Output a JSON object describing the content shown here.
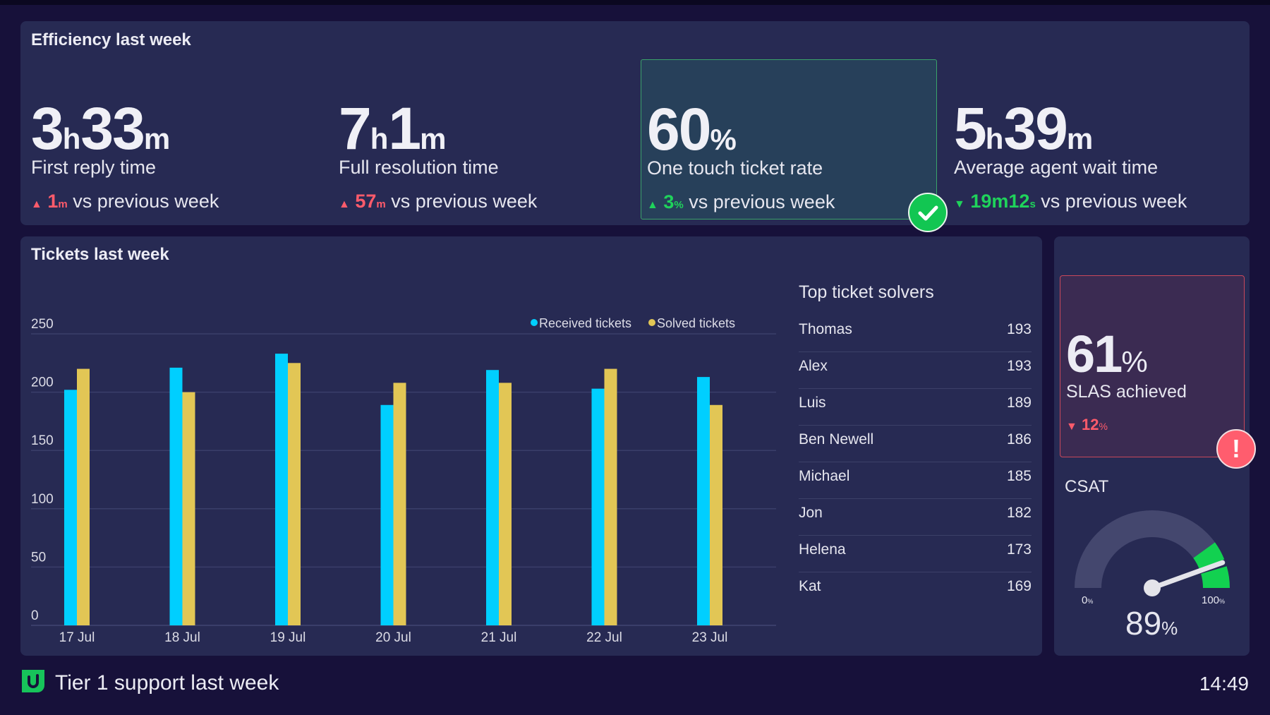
{
  "efficiency": {
    "title": "Efficiency last week",
    "metrics": [
      {
        "value": "3",
        "unit1": "h",
        "value2": "33",
        "unit2": "m",
        "label": "First reply time",
        "delta_value": "1",
        "delta_unit": "m",
        "delta_text": "vs previous week",
        "direction": "up",
        "color": "#ff5b6b"
      },
      {
        "value": "7",
        "unit1": "h",
        "value2": "1",
        "unit2": "m",
        "label": "Full resolution time",
        "delta_value": "57",
        "delta_unit": "m",
        "delta_text": "vs previous week",
        "direction": "up",
        "color": "#ff5b6b"
      },
      {
        "value": "60",
        "unit1": "%",
        "value2": "",
        "unit2": "",
        "label": "One touch ticket rate",
        "delta_value": "3",
        "delta_unit": "%",
        "delta_text": "vs previous week",
        "direction": "up",
        "color": "#1fd35b"
      },
      {
        "value": "5",
        "unit1": "h",
        "value2": "39",
        "unit2": "m",
        "label": "Average agent wait time",
        "delta_value": "19m12",
        "delta_unit": "s",
        "delta_text": "vs previous week",
        "direction": "down",
        "color": "#1fd35b"
      }
    ]
  },
  "tickets": {
    "title": "Tickets last week"
  },
  "chart_data": {
    "type": "bar",
    "title": "Tickets last week",
    "categories": [
      "17 Jul",
      "18 Jul",
      "19 Jul",
      "20 Jul",
      "21 Jul",
      "22 Jul",
      "23 Jul"
    ],
    "series": [
      {
        "name": "Received tickets",
        "color": "#00cfff",
        "values": [
          202,
          221,
          233,
          189,
          219,
          203,
          213
        ]
      },
      {
        "name": "Solved tickets",
        "color": "#e2c655",
        "values": [
          220,
          200,
          225,
          208,
          208,
          220,
          189
        ]
      }
    ],
    "yticks": [
      0,
      50,
      100,
      150,
      200,
      250
    ],
    "ylim": [
      0,
      250
    ],
    "legend": "top-right",
    "grid": true
  },
  "solvers": {
    "title": "Top ticket solvers",
    "rows": [
      {
        "name": "Thomas",
        "count": "193"
      },
      {
        "name": "Alex",
        "count": "193"
      },
      {
        "name": "Luis",
        "count": "189"
      },
      {
        "name": "Ben Newell",
        "count": "186"
      },
      {
        "name": "Michael",
        "count": "185"
      },
      {
        "name": "Jon",
        "count": "182"
      },
      {
        "name": "Helena",
        "count": "173"
      },
      {
        "name": "Kat",
        "count": "169"
      }
    ]
  },
  "sla": {
    "value": "61",
    "unit": "%",
    "label": "SLAS achieved",
    "delta_value": "12",
    "delta_unit": "%",
    "alert": "!"
  },
  "csat": {
    "label": "CSAT",
    "value": "89",
    "unit": "%",
    "min_label": "0",
    "max_label": "100",
    "pct": "%",
    "gauge_value": 89,
    "green_from": 80
  },
  "footer": {
    "title": "Tier 1 support last week",
    "time": "14:49"
  }
}
